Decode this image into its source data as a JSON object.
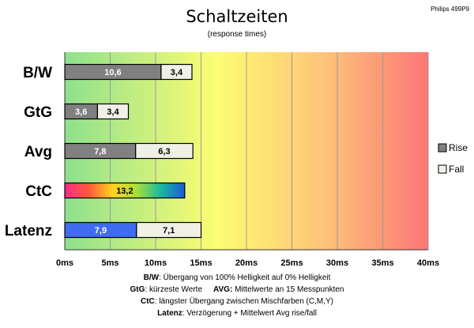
{
  "model": "Philips 499P9",
  "legend": {
    "items": [
      {
        "label": "Rise",
        "color": "#808080"
      },
      {
        "label": "Fall",
        "color": "#f0f0e6"
      }
    ]
  },
  "notes": {
    "line1": {
      "key": "B/W",
      "text": ":  Übergang von 100% Helligkeit auf 0% Helligkeit"
    },
    "line2": {
      "key1": "GtG",
      "text1": ": kürzeste  Werte",
      "key2": "AVG:",
      "text2": " Mittelwerte  an 15 Messpunkten"
    },
    "line3": {
      "key": "CtC",
      "text": ": längster Übergang  zwischen Mischfarben  (C,M,Y)"
    },
    "line4": {
      "key": "Latenz",
      "text": ": Verzögerung  + Mittelwert Avg rise/fall"
    }
  },
  "chart_data": {
    "type": "bar",
    "orientation": "horizontal",
    "stacked": true,
    "title": "Schaltzeiten",
    "subtitle": "(response times)",
    "categories": [
      "B/W",
      "GtG",
      "Avg",
      "CtC",
      "Latenz"
    ],
    "series": [
      {
        "name": "Rise",
        "values": [
          10.6,
          3.6,
          7.8,
          13.2,
          7.9
        ]
      },
      {
        "name": "Fall",
        "values": [
          3.4,
          3.4,
          6.3,
          null,
          7.1
        ]
      }
    ],
    "bar_labels": {
      "Rise": [
        "10,6",
        "3,6",
        "7,8",
        "13,2",
        "7,9"
      ],
      "Fall": [
        "3,4",
        "3,4",
        "6,3",
        "",
        "7,1"
      ]
    },
    "xlim": [
      0,
      40
    ],
    "x_ticks": [
      0,
      5,
      10,
      15,
      20,
      25,
      30,
      35,
      40
    ],
    "x_tick_labels": [
      "0ms",
      "5ms",
      "10ms",
      "15ms",
      "20ms",
      "25ms",
      "30ms",
      "35ms",
      "40ms"
    ],
    "grid": true,
    "legend_position": "right",
    "special_fills": {
      "CtC": "rainbow",
      "Latenz": "blue"
    },
    "colors": {
      "rise": "#808080",
      "fall": "#f0f0e6",
      "latenz_rise": "#3f6cf0",
      "gradient": [
        "#8ee08e",
        "#fdfd72",
        "#fdc27a",
        "#fb7777"
      ]
    }
  }
}
